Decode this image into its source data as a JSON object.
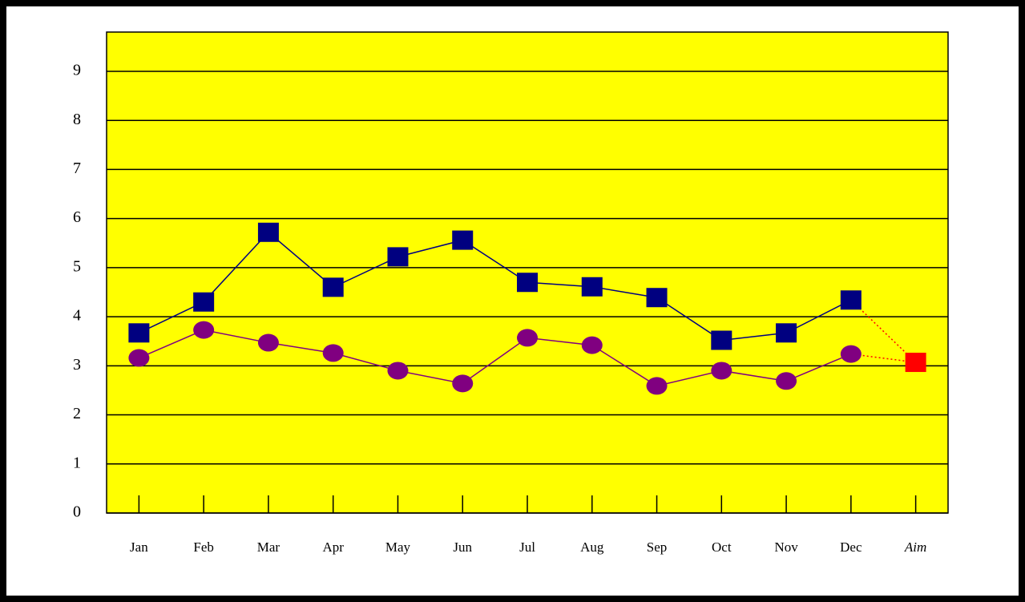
{
  "chart_data": {
    "type": "line",
    "categories": [
      "Jan",
      "Feb",
      "Mar",
      "Apr",
      "May",
      "Jun",
      "Jul",
      "Aug",
      "Sep",
      "Oct",
      "Nov",
      "Dec",
      "Aim"
    ],
    "aim_label_color": "#ff0000",
    "series": [
      {
        "color": "#000080",
        "marker": "square",
        "values": [
          3.67,
          4.3,
          5.72,
          4.6,
          5.22,
          5.56,
          4.7,
          4.61,
          4.39,
          3.52,
          3.67,
          4.34,
          null
        ]
      },
      {
        "color": "#800080",
        "marker": "circle",
        "values": [
          3.16,
          3.73,
          3.47,
          3.26,
          2.9,
          2.64,
          3.57,
          3.42,
          2.59,
          2.9,
          2.69,
          3.24,
          null
        ]
      },
      {
        "color": "#ff0000",
        "marker": "square",
        "values": [
          null,
          null,
          null,
          null,
          null,
          null,
          null,
          null,
          null,
          null,
          null,
          null,
          3.07
        ]
      }
    ],
    "ylim": [
      0,
      9.8
    ],
    "yticks": [
      0,
      1,
      2,
      3,
      4,
      5,
      6,
      7,
      8,
      9
    ],
    "grid": true,
    "plot_color": "#ffff00"
  }
}
